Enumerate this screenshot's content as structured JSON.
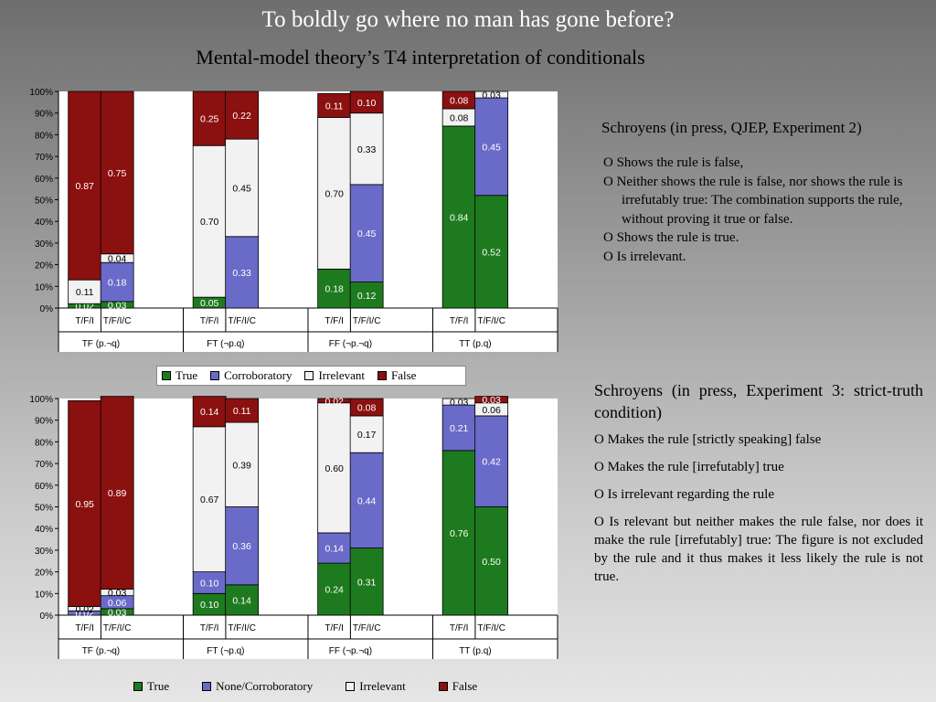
{
  "title": "To boldly  go where no man has gone before?",
  "subtitle": "Mental-model theory’s T4 interpretation of conditionals",
  "chart_data": [
    {
      "type": "bar",
      "stacked": true,
      "ylim": [
        0,
        1
      ],
      "yticks": [
        "0%",
        "10%",
        "20%",
        "30%",
        "40%",
        "50%",
        "60%",
        "70%",
        "80%",
        "90%",
        "100%"
      ],
      "grid": false,
      "legend_position": "bottom",
      "groups": [
        {
          "label": "TF (p.¬q)",
          "bars": [
            {
              "label": "T/F/I",
              "True": 0.02,
              "Corroboratory": 0,
              "Irrelevant": 0.11,
              "False": 0.87
            },
            {
              "label": "T/F/I/C",
              "True": 0.03,
              "Corroboratory": 0.18,
              "Irrelevant": 0.04,
              "False": 0.75
            }
          ]
        },
        {
          "label": "FT (¬p.q)",
          "bars": [
            {
              "label": "T/F/I",
              "True": 0.05,
              "Corroboratory": 0,
              "Irrelevant": 0.7,
              "False": 0.25
            },
            {
              "label": "T/F/I/C",
              "True": 0,
              "Corroboratory": 0.33,
              "Irrelevant": 0.45,
              "False": 0.22
            }
          ]
        },
        {
          "label": "FF (¬p.¬q)",
          "bars": [
            {
              "label": "T/F/I",
              "True": 0.18,
              "Corroboratory": 0,
              "Irrelevant": 0.7,
              "False": 0.11
            },
            {
              "label": "T/F/I/C",
              "True": 0.12,
              "Corroboratory": 0.45,
              "Irrelevant": 0.33,
              "False": 0.1
            }
          ]
        },
        {
          "label": "TT (p.q)",
          "bars": [
            {
              "label": "T/F/I",
              "True": 0.84,
              "Corroboratory": 0,
              "Irrelevant": 0.08,
              "False": 0.08
            },
            {
              "label": "T/F/I/C",
              "True": 0.52,
              "Corroboratory": 0.45,
              "Irrelevant": 0.03,
              "False": 0
            }
          ]
        }
      ],
      "series": [
        {
          "key": "True",
          "name": "True",
          "color": "#1e7a1e"
        },
        {
          "key": "Corroboratory",
          "name": "Corroboratory",
          "color": "#6a6ac8"
        },
        {
          "key": "Irrelevant",
          "name": "Irrelevant",
          "color": "#f2f2f2"
        },
        {
          "key": "False",
          "name": "False",
          "color": "#8b1010"
        }
      ]
    },
    {
      "type": "bar",
      "stacked": true,
      "ylim": [
        0,
        1
      ],
      "yticks": [
        "0%",
        "10%",
        "20%",
        "30%",
        "40%",
        "50%",
        "60%",
        "70%",
        "80%",
        "90%",
        "100%"
      ],
      "grid": false,
      "legend_position": "bottom",
      "groups": [
        {
          "label": "TF (p.¬q)",
          "bars": [
            {
              "label": "T/F/I",
              "True": 0,
              "Corroboratory": 0.02,
              "Irrelevant": 0.02,
              "False": 0.95
            },
            {
              "label": "T/F/I/C",
              "True": 0.03,
              "Corroboratory": 0.06,
              "Irrelevant": 0.03,
              "False": 0.89
            }
          ]
        },
        {
          "label": "FT (¬p.q)",
          "bars": [
            {
              "label": "T/F/I",
              "True": 0.1,
              "Corroboratory": 0.1,
              "Irrelevant": 0.67,
              "False": 0.14
            },
            {
              "label": "T/F/I/C",
              "True": 0.14,
              "Corroboratory": 0.36,
              "Irrelevant": 0.39,
              "False": 0.11
            }
          ]
        },
        {
          "label": "FF (¬p.¬q)",
          "bars": [
            {
              "label": "T/F/I",
              "True": 0.24,
              "Corroboratory": 0.14,
              "Irrelevant": 0.6,
              "False": 0.02
            },
            {
              "label": "T/F/I/C",
              "True": 0.31,
              "Corroboratory": 0.44,
              "Irrelevant": 0.17,
              "False": 0.08
            }
          ]
        },
        {
          "label": "TT (p.q)",
          "bars": [
            {
              "label": "T/F/I",
              "True": 0.76,
              "Corroboratory": 0.21,
              "Irrelevant": 0.03,
              "False": 0
            },
            {
              "label": "T/F/I/C",
              "True": 0.5,
              "Corroboratory": 0.42,
              "Irrelevant": 0.06,
              "False": 0.03
            }
          ]
        }
      ],
      "series": [
        {
          "key": "True",
          "name": "True",
          "color": "#1e7a1e"
        },
        {
          "key": "Corroboratory",
          "name": "None/Corroboratory",
          "color": "#6a6ac8"
        },
        {
          "key": "Irrelevant",
          "name": "Irrelevant",
          "color": "#f2f2f2"
        },
        {
          "key": "False",
          "name": "False",
          "color": "#8b1010"
        }
      ]
    }
  ],
  "notes1": {
    "head": "Schroyens (in press, QJEP, Experiment 2)",
    "items": [
      "O  Shows the rule is false,",
      "O  Neither shows the rule is false, nor shows the rule is irrefutably true: The combination supports the rule, without proving it true or false.",
      "O  Shows the rule is true.",
      "O  Is irrelevant."
    ]
  },
  "notes2": {
    "head": "Schroyens (in press,  Experiment 3: strict-truth condition)",
    "items": [
      "O Makes the rule [strictly speaking] false",
      "O Makes the rule [irrefutably] true",
      "O Is irrelevant regarding the rule",
      "O Is relevant but neither makes the rule false, nor does it make the rule [irrefutably] true: The figure is not excluded by the rule and it thus makes it less likely the rule is not true."
    ]
  }
}
